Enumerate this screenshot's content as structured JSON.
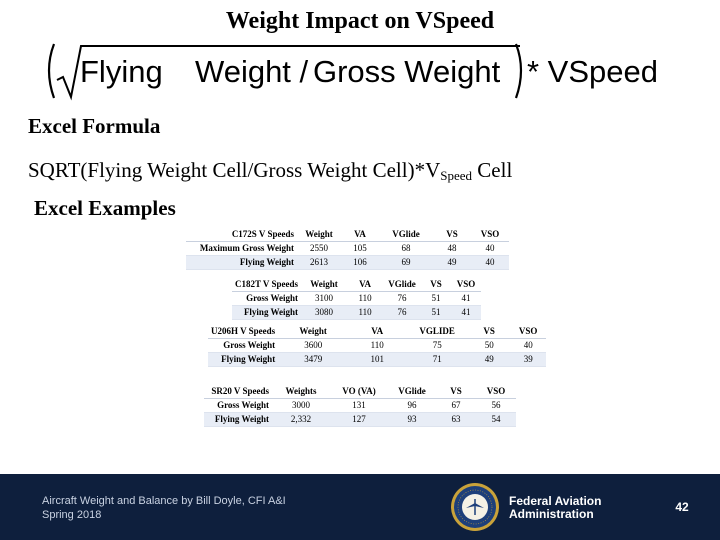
{
  "title": "Weight Impact on VSpeed",
  "formula": {
    "flying": "Flying",
    "weight1": "Weight /",
    "gross": "Gross Weight",
    "tail": "* VSpeed"
  },
  "excel_formula_label": "Excel Formula",
  "expression": {
    "prefix": "SQRT(Flying Weight Cell/Gross Weight Cell)*V",
    "sub": "Speed",
    "suffix": " Cell"
  },
  "excel_examples_label": "Excel Examples",
  "tables": [
    {
      "header": [
        "C172S V Speeds",
        "Weight",
        "VA",
        "VGlide",
        "VS",
        "VSO"
      ],
      "rows": [
        [
          "Maximum Gross Weight",
          "2550",
          "105",
          "68",
          "48",
          "40"
        ],
        [
          "Flying Weight",
          "2613",
          "106",
          "69",
          "49",
          "40"
        ]
      ]
    },
    {
      "header": [
        "C182T V Speeds",
        "Weight",
        "VA",
        "VGlide",
        "VS",
        "VSO"
      ],
      "rows": [
        [
          "Gross Weight",
          "3100",
          "110",
          "76",
          "51",
          "41"
        ],
        [
          "Flying Weight",
          "3080",
          "110",
          "76",
          "51",
          "41"
        ]
      ]
    },
    {
      "header": [
        "U206H V Speeds",
        "Weight",
        "VA",
        "VGLIDE",
        "VS",
        "VSO"
      ],
      "rows": [
        [
          "Gross Weight",
          "3600",
          "110",
          "75",
          "50",
          "40"
        ],
        [
          "Flying Weight",
          "3479",
          "101",
          "71",
          "49",
          "39"
        ]
      ]
    },
    {
      "header": [
        "SR20 V Speeds",
        "Weights",
        "VO (VA)",
        "VGlide",
        "VS",
        "VSO"
      ],
      "rows": [
        [
          "Gross Weight",
          "3000",
          "131",
          "96",
          "67",
          "56"
        ],
        [
          "Flying Weight",
          "2,332",
          "127",
          "93",
          "63",
          "54"
        ]
      ]
    }
  ],
  "footer": {
    "line1": "Aircraft Weight and Balance by Bill Doyle, CFI A&I",
    "line2": "Spring 2018",
    "agency_line1": "Federal Aviation",
    "agency_line2": "Administration",
    "seal_text": "FEDERAL AVIATION ADMINISTRATION",
    "page_number": "42"
  },
  "colors": {
    "footer_bg": "#0e1f3d",
    "seal_blue": "#1d3f7a",
    "seal_gold": "#c9a23a"
  }
}
